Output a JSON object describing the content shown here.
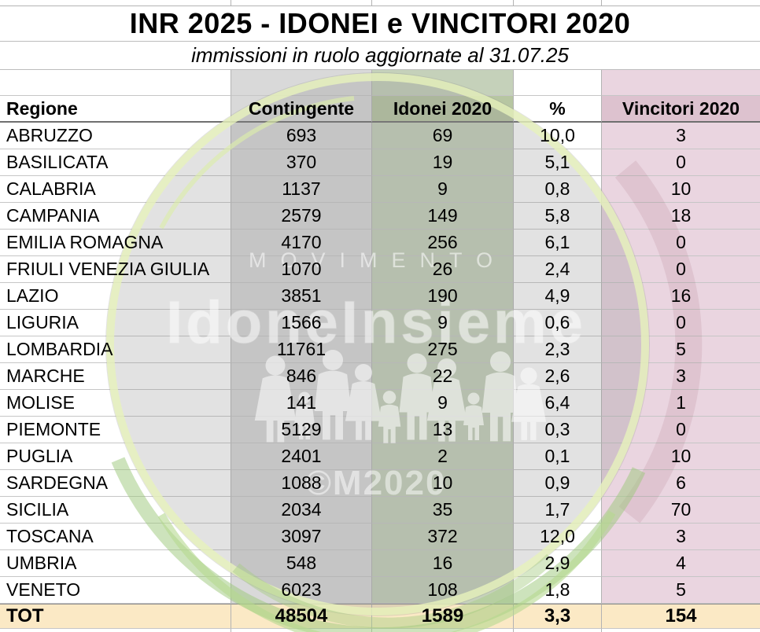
{
  "title": "INR 2025 - IDONEI e VINCITORI 2020",
  "subtitle": "immissioni in ruolo aggiornate al 31.07.25",
  "table": {
    "columns": [
      "Regione",
      "Contingente",
      "Idonei 2020",
      "%",
      "Vincitori 2020"
    ],
    "rows": [
      [
        "ABRUZZO",
        "693",
        "69",
        "10,0",
        "3"
      ],
      [
        "BASILICATA",
        "370",
        "19",
        "5,1",
        "0"
      ],
      [
        "CALABRIA",
        "1137",
        "9",
        "0,8",
        "10"
      ],
      [
        "CAMPANIA",
        "2579",
        "149",
        "5,8",
        "18"
      ],
      [
        "EMILIA ROMAGNA",
        "4170",
        "256",
        "6,1",
        "0"
      ],
      [
        "FRIULI VENEZIA GIULIA",
        "1070",
        "26",
        "2,4",
        "0"
      ],
      [
        "LAZIO",
        "3851",
        "190",
        "4,9",
        "16"
      ],
      [
        "LIGURIA",
        "1566",
        "9",
        "0,6",
        "0"
      ],
      [
        "LOMBARDIA",
        "11761",
        "275",
        "2,3",
        "5"
      ],
      [
        "MARCHE",
        "846",
        "22",
        "2,6",
        "3"
      ],
      [
        "MOLISE",
        "141",
        "9",
        "6,4",
        "1"
      ],
      [
        "PIEMONTE",
        "5129",
        "13",
        "0,3",
        "0"
      ],
      [
        "PUGLIA",
        "2401",
        "2",
        "0,1",
        "10"
      ],
      [
        "SARDEGNA",
        "1088",
        "10",
        "0,9",
        "6"
      ],
      [
        "SICILIA",
        "2034",
        "35",
        "1,7",
        "70"
      ],
      [
        "TOSCANA",
        "3097",
        "372",
        "12,0",
        "3"
      ],
      [
        "UMBRIA",
        "548",
        "16",
        "2,9",
        "4"
      ],
      [
        "VENETO",
        "6023",
        "108",
        "1,8",
        "5"
      ]
    ],
    "total_row": [
      "TOT",
      "48504",
      "1589",
      "3,3",
      "154"
    ]
  },
  "watermark": {
    "top_text": "MOVIMENTO",
    "main_text": "IdoneInsieme",
    "bottom_text": "©M2020"
  },
  "colors": {
    "contingente_fill": "#d9d9d9",
    "idonei_header_fill": "#b7c6a2",
    "idonei_fill": "#c5d1ba",
    "vincitori_header_fill": "#ddc2cf",
    "vincitori_fill": "#ead5e0",
    "total_fill": "#fbe9c5",
    "watermark_circle_gray": "#8a8a8a",
    "watermark_green": "#9cc779",
    "watermark_lime": "#e7f2bc",
    "watermark_maroon": "#7c3242"
  }
}
